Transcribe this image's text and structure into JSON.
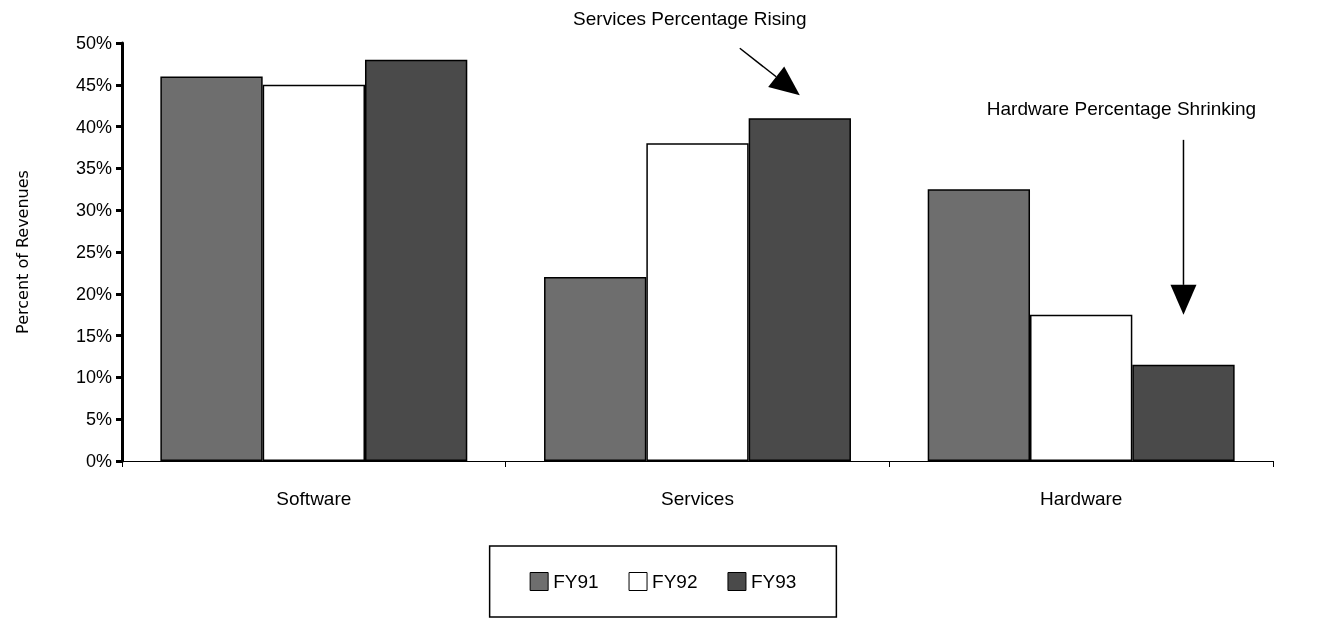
{
  "chart_data": {
    "type": "bar",
    "ylabel": "Percent of Revenues",
    "categories": [
      "Software",
      "Services",
      "Hardware"
    ],
    "series": [
      {
        "name": "FY91",
        "color": "#6e6e6e",
        "values": [
          46,
          22,
          32.5
        ]
      },
      {
        "name": "FY92",
        "color": "#ffffff",
        "values": [
          45,
          38,
          17.5
        ]
      },
      {
        "name": "FY93",
        "color": "#4a4a4a",
        "values": [
          48,
          41,
          11.5
        ]
      }
    ],
    "ylim": [
      0,
      50
    ],
    "yticks": [
      {
        "value": 0,
        "label": "0%"
      },
      {
        "value": 5,
        "label": "5%"
      },
      {
        "value": 10,
        "label": "10%"
      },
      {
        "value": 15,
        "label": "15%"
      },
      {
        "value": 20,
        "label": "20%"
      },
      {
        "value": 25,
        "label": "25%"
      },
      {
        "value": 30,
        "label": "30%"
      },
      {
        "value": 35,
        "label": "35%"
      },
      {
        "value": 40,
        "label": "40%"
      },
      {
        "value": 45,
        "label": "45%"
      },
      {
        "value": 50,
        "label": "50%"
      }
    ],
    "annotations": [
      "Services Percentage Rising",
      "Hardware Percentage Shrinking"
    ],
    "grid": false,
    "legend": "bottom"
  }
}
